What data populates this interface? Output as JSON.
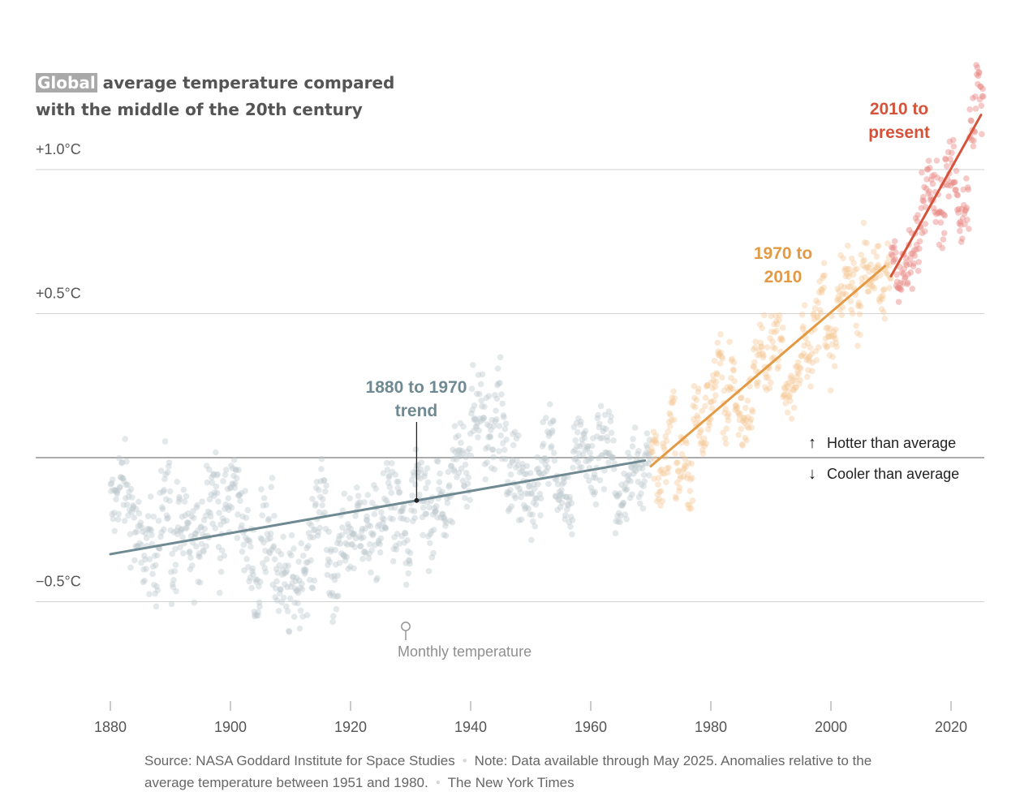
{
  "title": {
    "highlight": "Global",
    "rest": " average temperature compared with the middle of the 20th century"
  },
  "footer": {
    "source": "Source: NASA Goddard Institute for Space Studies",
    "note": "Note: Data available through May 2025. Anomalies relative to the average temperature between 1951 and 1980.",
    "credit": "The New York Times"
  },
  "chart_data": {
    "type": "scatter",
    "title": "Global average temperature compared with the middle of the 20th century",
    "x_ticks": [
      1880,
      1900,
      1920,
      1940,
      1960,
      1980,
      2000,
      2020
    ],
    "x_tick_labels": [
      "1880",
      "1900",
      "1920",
      "1940",
      "1960",
      "1980",
      "2000",
      "2020"
    ],
    "y_ticks": [
      1.0,
      0.5,
      -0.5
    ],
    "y_tick_labels": [
      "+1.0°C",
      "+0.5°C",
      "−0.5°C"
    ],
    "xlim": [
      1868,
      2026
    ],
    "ylim": [
      -0.88,
      1.5
    ],
    "grid": true,
    "baseline": 0,
    "baseline_labels": {
      "above": "Hotter than average",
      "below": "Cooler than average"
    },
    "monthly_label": "Monthly temperature",
    "annual_means": [
      {
        "year": 1880,
        "value": -0.17
      },
      {
        "year": 1881,
        "value": -0.09
      },
      {
        "year": 1882,
        "value": -0.11
      },
      {
        "year": 1883,
        "value": -0.18
      },
      {
        "year": 1884,
        "value": -0.28
      },
      {
        "year": 1885,
        "value": -0.33
      },
      {
        "year": 1886,
        "value": -0.31
      },
      {
        "year": 1887,
        "value": -0.36
      },
      {
        "year": 1888,
        "value": -0.18
      },
      {
        "year": 1889,
        "value": -0.11
      },
      {
        "year": 1890,
        "value": -0.36
      },
      {
        "year": 1891,
        "value": -0.23
      },
      {
        "year": 1892,
        "value": -0.27
      },
      {
        "year": 1893,
        "value": -0.31
      },
      {
        "year": 1894,
        "value": -0.3
      },
      {
        "year": 1895,
        "value": -0.23
      },
      {
        "year": 1896,
        "value": -0.11
      },
      {
        "year": 1897,
        "value": -0.11
      },
      {
        "year": 1898,
        "value": -0.27
      },
      {
        "year": 1899,
        "value": -0.17
      },
      {
        "year": 1900,
        "value": -0.08
      },
      {
        "year": 1901,
        "value": -0.15
      },
      {
        "year": 1902,
        "value": -0.28
      },
      {
        "year": 1903,
        "value": -0.37
      },
      {
        "year": 1904,
        "value": -0.47
      },
      {
        "year": 1905,
        "value": -0.26
      },
      {
        "year": 1906,
        "value": -0.22
      },
      {
        "year": 1907,
        "value": -0.39
      },
      {
        "year": 1908,
        "value": -0.43
      },
      {
        "year": 1909,
        "value": -0.48
      },
      {
        "year": 1910,
        "value": -0.43
      },
      {
        "year": 1911,
        "value": -0.44
      },
      {
        "year": 1912,
        "value": -0.36
      },
      {
        "year": 1913,
        "value": -0.34
      },
      {
        "year": 1914,
        "value": -0.15
      },
      {
        "year": 1915,
        "value": -0.14
      },
      {
        "year": 1916,
        "value": -0.36
      },
      {
        "year": 1917,
        "value": -0.46
      },
      {
        "year": 1918,
        "value": -0.3
      },
      {
        "year": 1919,
        "value": -0.27
      },
      {
        "year": 1920,
        "value": -0.27
      },
      {
        "year": 1921,
        "value": -0.19
      },
      {
        "year": 1922,
        "value": -0.28
      },
      {
        "year": 1923,
        "value": -0.26
      },
      {
        "year": 1924,
        "value": -0.27
      },
      {
        "year": 1925,
        "value": -0.22
      },
      {
        "year": 1926,
        "value": -0.1
      },
      {
        "year": 1927,
        "value": -0.22
      },
      {
        "year": 1928,
        "value": -0.2
      },
      {
        "year": 1929,
        "value": -0.36
      },
      {
        "year": 1930,
        "value": -0.16
      },
      {
        "year": 1931,
        "value": -0.09
      },
      {
        "year": 1932,
        "value": -0.16
      },
      {
        "year": 1933,
        "value": -0.29
      },
      {
        "year": 1934,
        "value": -0.13
      },
      {
        "year": 1935,
        "value": -0.2
      },
      {
        "year": 1936,
        "value": -0.15
      },
      {
        "year": 1937,
        "value": -0.03
      },
      {
        "year": 1938,
        "value": 0.0
      },
      {
        "year": 1939,
        "value": -0.02
      },
      {
        "year": 1940,
        "value": 0.13
      },
      {
        "year": 1941,
        "value": 0.19
      },
      {
        "year": 1942,
        "value": 0.07
      },
      {
        "year": 1943,
        "value": 0.09
      },
      {
        "year": 1944,
        "value": 0.2
      },
      {
        "year": 1945,
        "value": 0.09
      },
      {
        "year": 1946,
        "value": -0.07
      },
      {
        "year": 1947,
        "value": -0.03
      },
      {
        "year": 1948,
        "value": -0.11
      },
      {
        "year": 1949,
        "value": -0.11
      },
      {
        "year": 1950,
        "value": -0.17
      },
      {
        "year": 1951,
        "value": -0.07
      },
      {
        "year": 1952,
        "value": 0.01
      },
      {
        "year": 1953,
        "value": 0.08
      },
      {
        "year": 1954,
        "value": -0.13
      },
      {
        "year": 1955,
        "value": -0.14
      },
      {
        "year": 1956,
        "value": -0.19
      },
      {
        "year": 1957,
        "value": 0.05
      },
      {
        "year": 1958,
        "value": 0.06
      },
      {
        "year": 1959,
        "value": 0.03
      },
      {
        "year": 1960,
        "value": -0.03
      },
      {
        "year": 1961,
        "value": 0.06
      },
      {
        "year": 1962,
        "value": 0.03
      },
      {
        "year": 1963,
        "value": 0.05
      },
      {
        "year": 1964,
        "value": -0.2
      },
      {
        "year": 1965,
        "value": -0.11
      },
      {
        "year": 1966,
        "value": -0.06
      },
      {
        "year": 1967,
        "value": -0.02
      },
      {
        "year": 1968,
        "value": -0.08
      },
      {
        "year": 1969,
        "value": 0.05
      },
      {
        "year": 1970,
        "value": 0.03
      },
      {
        "year": 1971,
        "value": -0.08
      },
      {
        "year": 1972,
        "value": 0.01
      },
      {
        "year": 1973,
        "value": 0.16
      },
      {
        "year": 1974,
        "value": -0.07
      },
      {
        "year": 1975,
        "value": -0.01
      },
      {
        "year": 1976,
        "value": -0.1
      },
      {
        "year": 1977,
        "value": 0.18
      },
      {
        "year": 1978,
        "value": 0.07
      },
      {
        "year": 1979,
        "value": 0.16
      },
      {
        "year": 1980,
        "value": 0.26
      },
      {
        "year": 1981,
        "value": 0.32
      },
      {
        "year": 1982,
        "value": 0.14
      },
      {
        "year": 1983,
        "value": 0.31
      },
      {
        "year": 1984,
        "value": 0.16
      },
      {
        "year": 1985,
        "value": 0.12
      },
      {
        "year": 1986,
        "value": 0.18
      },
      {
        "year": 1987,
        "value": 0.32
      },
      {
        "year": 1988,
        "value": 0.39
      },
      {
        "year": 1989,
        "value": 0.27
      },
      {
        "year": 1990,
        "value": 0.45
      },
      {
        "year": 1991,
        "value": 0.4
      },
      {
        "year": 1992,
        "value": 0.22
      },
      {
        "year": 1993,
        "value": 0.23
      },
      {
        "year": 1994,
        "value": 0.31
      },
      {
        "year": 1995,
        "value": 0.45
      },
      {
        "year": 1996,
        "value": 0.33
      },
      {
        "year": 1997,
        "value": 0.46
      },
      {
        "year": 1998,
        "value": 0.61
      },
      {
        "year": 1999,
        "value": 0.38
      },
      {
        "year": 2000,
        "value": 0.39
      },
      {
        "year": 2001,
        "value": 0.54
      },
      {
        "year": 2002,
        "value": 0.63
      },
      {
        "year": 2003,
        "value": 0.62
      },
      {
        "year": 2004,
        "value": 0.53
      },
      {
        "year": 2005,
        "value": 0.68
      },
      {
        "year": 2006,
        "value": 0.64
      },
      {
        "year": 2007,
        "value": 0.66
      },
      {
        "year": 2008,
        "value": 0.54
      },
      {
        "year": 2009,
        "value": 0.65
      },
      {
        "year": 2010,
        "value": 0.72
      },
      {
        "year": 2011,
        "value": 0.61
      },
      {
        "year": 2012,
        "value": 0.65
      },
      {
        "year": 2013,
        "value": 0.68
      },
      {
        "year": 2014,
        "value": 0.75
      },
      {
        "year": 2015,
        "value": 0.9
      },
      {
        "year": 2016,
        "value": 1.01
      },
      {
        "year": 2017,
        "value": 0.92
      },
      {
        "year": 2018,
        "value": 0.85
      },
      {
        "year": 2019,
        "value": 0.98
      },
      {
        "year": 2020,
        "value": 1.01
      },
      {
        "year": 2021,
        "value": 0.85
      },
      {
        "year": 2022,
        "value": 0.89
      },
      {
        "year": 2023,
        "value": 1.17
      },
      {
        "year": 2024,
        "value": 1.28
      },
      {
        "year": 2025,
        "value": 1.2
      }
    ],
    "series": [
      {
        "name": "1880 to 1970 trend",
        "label_lines": [
          "1880 to 1970",
          "trend"
        ],
        "color": "#6f8a93",
        "x": [
          1880,
          1969
        ],
        "y": [
          -0.335,
          -0.01
        ]
      },
      {
        "name": "1970 to 2010",
        "label_lines": [
          "1970 to",
          "2010"
        ],
        "color": "#e39a44",
        "x": [
          1970,
          2009
        ],
        "y": [
          -0.03,
          0.665
        ]
      },
      {
        "name": "2010 to present",
        "label_lines": [
          "2010 to",
          "present"
        ],
        "color": "#d4533a",
        "x": [
          2010,
          2025
        ],
        "y": [
          0.63,
          1.19
        ]
      }
    ],
    "annotation_year": 1931
  },
  "colors": {
    "dots_early": "#bcc8cc",
    "dots_mid": "#f5c590",
    "dots_late": "#e98a86",
    "grid": "#d2d2d2",
    "baseline": "#7a7a7a",
    "axis_text": "#555555"
  }
}
